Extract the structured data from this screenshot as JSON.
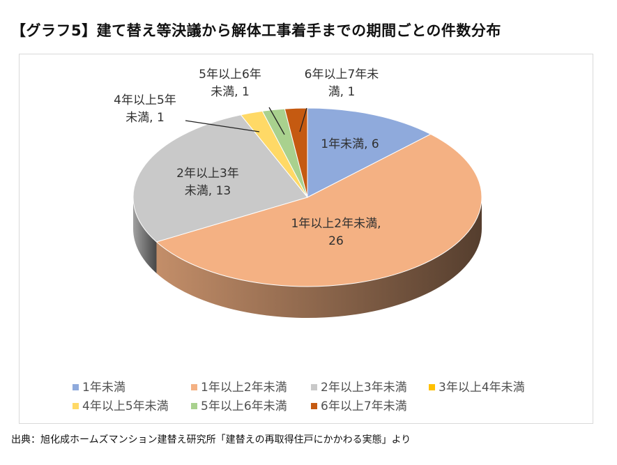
{
  "title": "【グラフ5】建て替え等決議から解体工事着手までの期間ごとの件数分布",
  "source": "出典：旭化成ホームズマンション建替え研究所「建替えの再取得住戸にかかわる実態」より",
  "chart_data": {
    "type": "pie",
    "three_d": true,
    "legend_position": "bottom",
    "categories": [
      "1年未満",
      "1年以上2年未満",
      "2年以上3年未満",
      "3年以上4年未満",
      "4年以上5年未満",
      "5年以上6年未満",
      "6年以上7年未満"
    ],
    "values": [
      6,
      26,
      13,
      0,
      1,
      1,
      1
    ],
    "colors": [
      "#8FAADC",
      "#F4B183",
      "#C9C9C9",
      "#FFC000",
      "#FFD966",
      "#A9D18E",
      "#C55A11"
    ],
    "data_labels": [
      [
        "1年未満, 6"
      ],
      [
        "1年以上2年未満,",
        "26"
      ],
      [
        "2年以上3年",
        "未満, 13"
      ],
      [],
      [
        "4年以上5年",
        "未満, 1"
      ],
      [
        "5年以上6年",
        "未満, 1"
      ],
      [
        "6年以上7年未",
        "満, 1"
      ]
    ]
  }
}
